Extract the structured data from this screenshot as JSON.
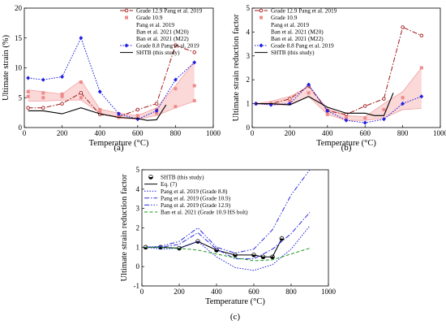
{
  "chart_data": [
    {
      "id": "a",
      "caption": "(a)",
      "type": "line",
      "xlabel": "Temperature (°C)",
      "ylabel": "Ultimate strain (%)",
      "xlim": [
        0,
        1000
      ],
      "ylim": [
        0,
        20
      ],
      "xticks": [
        "0",
        "200",
        "400",
        "600",
        "800",
        "1000"
      ],
      "yticks": [
        "0",
        "5",
        "10",
        "15",
        "20"
      ],
      "legend_position": "top-right",
      "series": [
        {
          "name": "Grade 12.9 Pang et al. 2019",
          "style": "dash-dot",
          "color": "#a01818",
          "marker": "circle-open",
          "x": [
            20,
            100,
            200,
            300,
            400,
            500,
            600,
            700,
            800,
            900
          ],
          "y": [
            3.3,
            3.3,
            4.0,
            5.8,
            2.2,
            1.8,
            3.0,
            4.0,
            13.8,
            12.6
          ]
        },
        {
          "name": "Grade 10.9",
          "style": "markers",
          "color": "#f08a8a",
          "marker": "square",
          "x": [
            20,
            20,
            100,
            100,
            200,
            200,
            300,
            300,
            400,
            400,
            500,
            500,
            600,
            600,
            700,
            700,
            800,
            800,
            900,
            900
          ],
          "y": [
            5.2,
            6.0,
            5.0,
            5.8,
            5.2,
            5.6,
            7.6,
            5.0,
            3.0,
            2.6,
            2.3,
            1.7,
            2.0,
            1.6,
            3.0,
            2.4,
            6.5,
            3.5,
            7.0,
            4.5
          ]
        },
        {
          "name": "Pang et al. 2019",
          "style": "band-edge",
          "color": "#f3a3a3",
          "x": [
            20,
            100,
            200,
            300,
            400,
            500,
            600,
            700,
            800,
            900
          ],
          "y": [
            6.3,
            6.0,
            5.6,
            7.9,
            3.1,
            2.4,
            2.0,
            3.3,
            7.0,
            11.0
          ]
        },
        {
          "name": "Ban et al. 2021 (M20)",
          "style": "band-edge",
          "color": "#f3a3a3",
          "x": [
            20,
            100,
            200,
            300,
            400,
            500,
            600,
            700,
            800,
            900
          ],
          "y": [
            4.4,
            4.4,
            4.6,
            4.6,
            2.4,
            1.6,
            1.4,
            2.0,
            3.3,
            4.4
          ]
        },
        {
          "name": "Ban et al. 2021 (M22)",
          "style": "none",
          "color": "#f3a3a3",
          "x": [],
          "y": []
        },
        {
          "name": "Grade 8.8 Pang et al. 2019",
          "style": "dotted",
          "color": "#1f1fe0",
          "marker": "diamond",
          "x": [
            20,
            100,
            200,
            300,
            400,
            500,
            600,
            700,
            800,
            900
          ],
          "y": [
            8.3,
            8.0,
            8.5,
            15.0,
            6.0,
            2.3,
            1.4,
            2.8,
            8.0,
            10.9
          ]
        },
        {
          "name": "SHTB (this study)",
          "style": "solid",
          "color": "#000000",
          "x": [
            20,
            100,
            200,
            300,
            400,
            500,
            600,
            650,
            700,
            750
          ],
          "y": [
            2.8,
            2.8,
            2.3,
            3.3,
            2.3,
            1.7,
            1.5,
            1.2,
            1.3,
            3.8
          ]
        }
      ]
    },
    {
      "id": "b",
      "caption": "(b)",
      "type": "line",
      "xlabel": "Temperature (°C)",
      "ylabel": "Ultimate strain reduction factor",
      "xlim": [
        0,
        1000
      ],
      "ylim": [
        0,
        5
      ],
      "xticks": [
        "0",
        "200",
        "400",
        "600",
        "800",
        "1000"
      ],
      "yticks": [
        "0",
        "1",
        "2",
        "3",
        "4",
        "5"
      ],
      "legend_position": "top-left",
      "series": [
        {
          "name": "Grade 12.9 Pang et al. 2019",
          "style": "dash-dot",
          "color": "#a01818",
          "marker": "circle-open",
          "x": [
            20,
            100,
            200,
            300,
            400,
            500,
            600,
            700,
            800,
            900
          ],
          "y": [
            1.0,
            1.0,
            1.2,
            1.75,
            0.7,
            0.55,
            0.9,
            1.2,
            4.2,
            3.85
          ]
        },
        {
          "name": "Grade 10.9",
          "style": "markers",
          "color": "#f08a8a",
          "marker": "square",
          "x": [
            20,
            100,
            200,
            300,
            400,
            500,
            600,
            700,
            800,
            900
          ],
          "y": [
            1.0,
            1.0,
            1.1,
            1.45,
            0.55,
            0.4,
            0.4,
            0.75,
            1.25,
            2.5
          ]
        },
        {
          "name": "Pang et al. 2019",
          "style": "band-edge",
          "color": "#f3a3a3",
          "x": [
            20,
            100,
            200,
            300,
            400,
            500,
            600,
            700,
            800,
            900
          ],
          "y": [
            1.0,
            1.1,
            1.3,
            1.7,
            0.8,
            0.5,
            0.45,
            1.0,
            1.5,
            2.5
          ]
        },
        {
          "name": "Ban et al. 2021 (M20)",
          "style": "band-edge",
          "color": "#f3a3a3",
          "x": [
            20,
            100,
            200,
            300,
            400,
            500,
            600,
            700,
            800,
            900
          ],
          "y": [
            1.0,
            0.95,
            0.95,
            1.3,
            0.55,
            0.3,
            0.3,
            0.4,
            0.75,
            0.8
          ]
        },
        {
          "name": "Ban et al. 2021 (M22)",
          "style": "none",
          "color": "#f3a3a3",
          "x": [],
          "y": []
        },
        {
          "name": "Grade 8.8 Pang et al. 2019",
          "style": "dotted",
          "color": "#1f1fe0",
          "marker": "diamond",
          "x": [
            20,
            100,
            200,
            300,
            400,
            500,
            600,
            700,
            800,
            900
          ],
          "y": [
            1.0,
            0.95,
            1.0,
            1.8,
            0.7,
            0.3,
            0.2,
            0.35,
            1.0,
            1.3
          ]
        },
        {
          "name": "SHTB (this study)",
          "style": "solid",
          "color": "#000000",
          "x": [
            20,
            100,
            200,
            300,
            400,
            500,
            600,
            650,
            700,
            750
          ],
          "y": [
            1.0,
            1.0,
            0.95,
            1.3,
            0.85,
            0.6,
            0.6,
            0.5,
            0.5,
            1.45
          ]
        }
      ]
    },
    {
      "id": "c",
      "caption": "(c)",
      "type": "line",
      "xlabel": "Temperature (°C)",
      "ylabel": "Ultimate strain reduction factor",
      "xlim": [
        0,
        1000
      ],
      "ylim": [
        -1,
        5
      ],
      "xticks": [
        "0",
        "200",
        "400",
        "600",
        "800",
        "1000"
      ],
      "yticks": [
        "-1",
        "0",
        "1",
        "2",
        "3",
        "4",
        "5"
      ],
      "legend_position": "top-left",
      "series": [
        {
          "name": "SHTB (this study)",
          "style": "markers",
          "color": "#000000",
          "marker": "circle-half",
          "x": [
            20,
            100,
            200,
            300,
            400,
            500,
            600,
            650,
            700,
            750
          ],
          "y": [
            1.0,
            1.0,
            0.95,
            1.3,
            0.85,
            0.6,
            0.6,
            0.5,
            0.5,
            1.45
          ]
        },
        {
          "name": "Eq. (7)",
          "style": "solid",
          "color": "#000000",
          "x": [
            20,
            100,
            200,
            300,
            400,
            500,
            600,
            650,
            700,
            750
          ],
          "y": [
            1.0,
            1.0,
            0.95,
            1.3,
            0.85,
            0.6,
            0.6,
            0.5,
            0.5,
            1.45
          ]
        },
        {
          "name": "Pang et al. 2019 (Grade 8.8)",
          "style": "dotted",
          "color": "#2a2ae0",
          "x": [
            20,
            100,
            200,
            300,
            400,
            500,
            600,
            700,
            800,
            900
          ],
          "y": [
            1.0,
            0.9,
            0.95,
            1.3,
            0.5,
            -0.05,
            -0.2,
            0.1,
            0.9,
            2.1
          ]
        },
        {
          "name": "Pang et al. 2019 (Grade 10.9)",
          "style": "dash-dot",
          "color": "#2a2ae0",
          "x": [
            20,
            100,
            200,
            300,
            400,
            500,
            600,
            700,
            800,
            900
          ],
          "y": [
            1.0,
            1.0,
            1.15,
            1.75,
            0.9,
            0.4,
            0.4,
            0.9,
            1.7,
            2.8
          ]
        },
        {
          "name": "Pang et al. 2019 (Grade 12.9)",
          "style": "dash-dot-dot",
          "color": "#2a2ae0",
          "x": [
            20,
            100,
            200,
            300,
            400,
            500,
            600,
            700,
            800,
            900
          ],
          "y": [
            1.0,
            1.05,
            1.3,
            2.0,
            1.0,
            0.7,
            0.9,
            1.9,
            3.7,
            5.0
          ]
        },
        {
          "name": "Ban et al. 2021 (Grade 10.9 HS bolt)",
          "style": "dashed",
          "color": "#1a9a1a",
          "x": [
            20,
            100,
            200,
            300,
            400,
            500,
            600,
            700,
            800,
            900
          ],
          "y": [
            1.0,
            0.98,
            0.95,
            0.85,
            0.65,
            0.45,
            0.3,
            0.35,
            0.65,
            0.95
          ]
        }
      ]
    }
  ]
}
